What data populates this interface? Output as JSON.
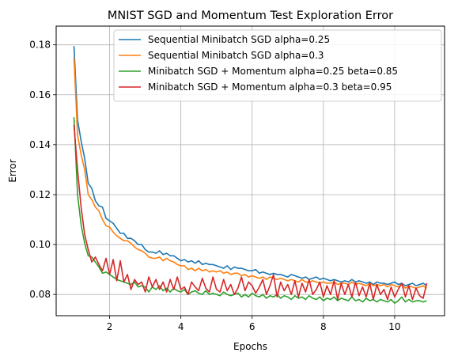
{
  "chart_data": {
    "type": "line",
    "title": "MNIST SGD and Momentum Test Exploration Error",
    "xlabel": "Epochs",
    "ylabel": "Error",
    "xlim": [
      0.5,
      11.4
    ],
    "ylim": [
      0.0715,
      0.1875
    ],
    "xticks": [
      2,
      4,
      6,
      8,
      10
    ],
    "yticks": [
      0.08,
      0.1,
      0.12,
      0.14,
      0.16,
      0.18
    ],
    "ytick_labels": [
      "0.08",
      "0.10",
      "0.12",
      "0.14",
      "0.16",
      "0.18"
    ],
    "grid": true,
    "legend_position": "upper right",
    "x": [
      1.0,
      1.1,
      1.2,
      1.3,
      1.4,
      1.5,
      1.6,
      1.7,
      1.8,
      1.9,
      2.0,
      2.1,
      2.2,
      2.3,
      2.4,
      2.5,
      2.6,
      2.7,
      2.8,
      2.9,
      3.0,
      3.1,
      3.2,
      3.3,
      3.4,
      3.5,
      3.6,
      3.7,
      3.8,
      3.9,
      4.0,
      4.1,
      4.2,
      4.3,
      4.4,
      4.5,
      4.6,
      4.7,
      4.8,
      4.9,
      5.0,
      5.1,
      5.2,
      5.3,
      5.4,
      5.5,
      5.6,
      5.7,
      5.8,
      5.9,
      6.0,
      6.1,
      6.2,
      6.3,
      6.4,
      6.5,
      6.6,
      6.7,
      6.8,
      6.9,
      7.0,
      7.1,
      7.2,
      7.3,
      7.4,
      7.5,
      7.6,
      7.7,
      7.8,
      7.9,
      8.0,
      8.1,
      8.2,
      8.3,
      8.4,
      8.5,
      8.6,
      8.7,
      8.8,
      8.9,
      9.0,
      9.1,
      9.2,
      9.3,
      9.4,
      9.5,
      9.6,
      9.7,
      9.8,
      9.9,
      10.0,
      10.1,
      10.2,
      10.3,
      10.4,
      10.5,
      10.6,
      10.7,
      10.8,
      10.9
    ],
    "series": [
      {
        "name": "Sequential Minibatch SGD alpha=0.25",
        "color": "#1f77b4",
        "values": [
          0.1795,
          0.15,
          0.1415,
          0.1345,
          0.1245,
          0.1225,
          0.1175,
          0.1155,
          0.115,
          0.1105,
          0.1095,
          0.1085,
          0.1065,
          0.1045,
          0.1045,
          0.1025,
          0.1025,
          0.1015,
          0.1,
          0.1,
          0.098,
          0.097,
          0.097,
          0.0965,
          0.0975,
          0.096,
          0.0965,
          0.0955,
          0.0955,
          0.0945,
          0.0935,
          0.094,
          0.093,
          0.0935,
          0.0925,
          0.0935,
          0.092,
          0.0925,
          0.092,
          0.092,
          0.0915,
          0.091,
          0.0905,
          0.0915,
          0.09,
          0.091,
          0.0905,
          0.0905,
          0.09,
          0.0895,
          0.0895,
          0.09,
          0.0885,
          0.089,
          0.0885,
          0.088,
          0.0885,
          0.088,
          0.088,
          0.0875,
          0.087,
          0.088,
          0.0875,
          0.087,
          0.0865,
          0.087,
          0.086,
          0.0865,
          0.087,
          0.086,
          0.0865,
          0.086,
          0.0855,
          0.086,
          0.0855,
          0.085,
          0.0855,
          0.085,
          0.086,
          0.085,
          0.0855,
          0.085,
          0.0845,
          0.085,
          0.084,
          0.085,
          0.0845,
          0.0845,
          0.084,
          0.0845,
          0.085,
          0.084,
          0.0845,
          0.0835,
          0.084,
          0.0845,
          0.0835,
          0.084,
          0.0845,
          0.0835
        ]
      },
      {
        "name": "Sequential Minibatch SGD alpha=0.3",
        "color": "#ff7f0e",
        "values": [
          0.175,
          0.144,
          0.136,
          0.13,
          0.12,
          0.118,
          0.115,
          0.1135,
          0.11,
          0.1075,
          0.107,
          0.105,
          0.1035,
          0.1025,
          0.1015,
          0.1015,
          0.1005,
          0.099,
          0.098,
          0.0975,
          0.0965,
          0.095,
          0.0945,
          0.0945,
          0.095,
          0.0935,
          0.0945,
          0.0935,
          0.093,
          0.092,
          0.0915,
          0.0915,
          0.09,
          0.0905,
          0.0895,
          0.0905,
          0.0895,
          0.09,
          0.089,
          0.0895,
          0.089,
          0.0895,
          0.0885,
          0.089,
          0.088,
          0.0885,
          0.0885,
          0.0875,
          0.088,
          0.087,
          0.0875,
          0.087,
          0.0865,
          0.087,
          0.086,
          0.087,
          0.0865,
          0.086,
          0.0865,
          0.086,
          0.0855,
          0.086,
          0.0855,
          0.085,
          0.086,
          0.085,
          0.085,
          0.0855,
          0.085,
          0.0845,
          0.085,
          0.0845,
          0.0845,
          0.085,
          0.084,
          0.0845,
          0.0845,
          0.084,
          0.085,
          0.084,
          0.0845,
          0.084,
          0.0835,
          0.0845,
          0.0835,
          0.084,
          0.0835,
          0.084,
          0.083,
          0.084,
          0.0835,
          0.083,
          0.084,
          0.0825,
          0.0835,
          0.083,
          0.0825,
          0.083,
          0.0835,
          0.0825
        ]
      },
      {
        "name": "Minibatch SGD + Momentum alpha=0.25 beta=0.85",
        "color": "#2ca02c",
        "values": [
          0.151,
          0.12,
          0.108,
          0.1005,
          0.0955,
          0.095,
          0.093,
          0.091,
          0.0885,
          0.089,
          0.088,
          0.087,
          0.086,
          0.0855,
          0.085,
          0.0845,
          0.084,
          0.085,
          0.083,
          0.0835,
          0.083,
          0.081,
          0.083,
          0.082,
          0.0835,
          0.0815,
          0.0825,
          0.081,
          0.0825,
          0.0815,
          0.081,
          0.082,
          0.08,
          0.081,
          0.0815,
          0.0805,
          0.08,
          0.0815,
          0.08,
          0.0805,
          0.08,
          0.0795,
          0.081,
          0.08,
          0.0795,
          0.08,
          0.0805,
          0.079,
          0.08,
          0.079,
          0.0805,
          0.0795,
          0.079,
          0.08,
          0.0785,
          0.0795,
          0.079,
          0.08,
          0.0785,
          0.0795,
          0.079,
          0.078,
          0.0795,
          0.0785,
          0.079,
          0.078,
          0.0795,
          0.0785,
          0.078,
          0.079,
          0.0775,
          0.0785,
          0.078,
          0.079,
          0.0775,
          0.0785,
          0.078,
          0.0775,
          0.079,
          0.0775,
          0.078,
          0.077,
          0.0785,
          0.0775,
          0.078,
          0.077,
          0.078,
          0.0775,
          0.077,
          0.078,
          0.0765,
          0.0775,
          0.079,
          0.077,
          0.078,
          0.077,
          0.0775,
          0.0775,
          0.077,
          0.0775
        ]
      },
      {
        "name": "Minibatch SGD + Momentum alpha=0.3 beta=0.95",
        "color": "#d62728",
        "values": [
          0.148,
          0.13,
          0.115,
          0.104,
          0.098,
          0.093,
          0.095,
          0.092,
          0.0895,
          0.0945,
          0.088,
          0.094,
          0.0855,
          0.0935,
          0.085,
          0.088,
          0.082,
          0.086,
          0.084,
          0.085,
          0.081,
          0.087,
          0.083,
          0.086,
          0.082,
          0.085,
          0.081,
          0.086,
          0.082,
          0.087,
          0.082,
          0.083,
          0.08,
          0.085,
          0.083,
          0.0815,
          0.0865,
          0.0825,
          0.081,
          0.087,
          0.082,
          0.081,
          0.086,
          0.0815,
          0.084,
          0.08,
          0.0825,
          0.087,
          0.0815,
          0.085,
          0.0835,
          0.0805,
          0.083,
          0.086,
          0.08,
          0.0835,
          0.088,
          0.079,
          0.085,
          0.0815,
          0.084,
          0.08,
          0.0855,
          0.079,
          0.0845,
          0.081,
          0.086,
          0.08,
          0.082,
          0.085,
          0.079,
          0.0835,
          0.08,
          0.0855,
          0.078,
          0.0845,
          0.08,
          0.084,
          0.079,
          0.085,
          0.0795,
          0.083,
          0.079,
          0.0845,
          0.078,
          0.084,
          0.08,
          0.082,
          0.078,
          0.083,
          0.079,
          0.082,
          0.0845,
          0.079,
          0.0835,
          0.078,
          0.0825,
          0.0795,
          0.0785,
          0.0845
        ]
      }
    ]
  }
}
